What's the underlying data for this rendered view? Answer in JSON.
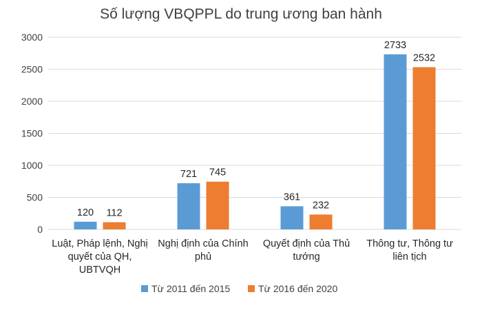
{
  "colors": {
    "series_1": "#5B9BD5",
    "series_2": "#ED7D31",
    "gridline": "#D9D9D9",
    "axis_text": "#404040",
    "frame_border": "#C8C8C8"
  },
  "chart_data": {
    "type": "bar",
    "title": "Số lượng VBQPPL do trung ương ban hành",
    "xlabel": "",
    "ylabel": "",
    "ylim": [
      0,
      3000
    ],
    "ytick_step": 500,
    "grid": true,
    "legend_position": "bottom",
    "categories": [
      [
        "Luật, Pháp lệnh, Nghị",
        "quyết của QH,",
        "UBTVQH"
      ],
      [
        "Nghị định của Chính",
        "phủ"
      ],
      [
        "Quyết định của Thủ",
        "tướng"
      ],
      [
        "Thông tư, Thông tư",
        "liên tịch"
      ]
    ],
    "series": [
      {
        "name": "Từ 2011 đến 2015",
        "values": [
          120,
          721,
          361,
          2733
        ]
      },
      {
        "name": "Từ 2016 đến 2020",
        "values": [
          112,
          745,
          232,
          2532
        ]
      }
    ]
  }
}
